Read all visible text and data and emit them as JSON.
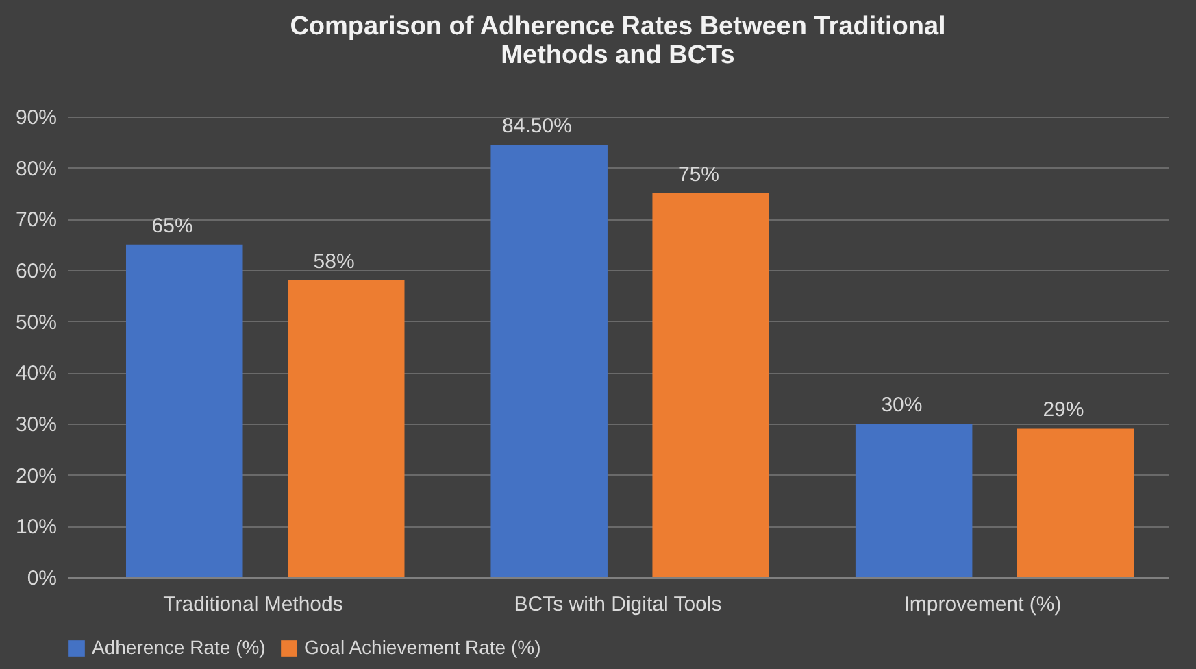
{
  "chart_data": {
    "type": "bar",
    "title": "Comparison of Adherence Rates Between Traditional Methods and BCTs",
    "categories": [
      "Traditional Methods",
      "BCTs with Digital Tools",
      "Improvement (%)"
    ],
    "series": [
      {
        "name": "Adherence Rate (%)",
        "color": "#4472c4",
        "values": [
          65,
          84.5,
          30
        ],
        "value_labels": [
          "65%",
          "84.50%",
          "30%"
        ]
      },
      {
        "name": "Goal Achievement Rate (%)",
        "color": "#ed7d31",
        "values": [
          58,
          75,
          29
        ],
        "value_labels": [
          "58%",
          "75%",
          "29%"
        ]
      }
    ],
    "ylim": [
      0,
      90
    ],
    "yticks": [
      {
        "value": 0,
        "label": "0%"
      },
      {
        "value": 10,
        "label": "10%"
      },
      {
        "value": 20,
        "label": "20%"
      },
      {
        "value": 30,
        "label": "30%"
      },
      {
        "value": 40,
        "label": "40%"
      },
      {
        "value": 50,
        "label": "50%"
      },
      {
        "value": 60,
        "label": "60%"
      },
      {
        "value": 70,
        "label": "70%"
      },
      {
        "value": 80,
        "label": "80%"
      },
      {
        "value": 90,
        "label": "90%"
      }
    ],
    "grid": "y",
    "legend": "bottom"
  }
}
